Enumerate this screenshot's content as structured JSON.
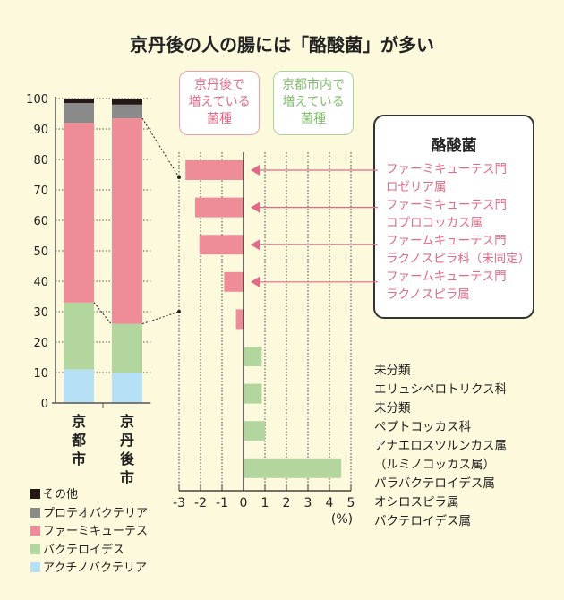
{
  "chart_data": [
    {
      "type": "bar",
      "stacked": true,
      "categories": [
        "京都市",
        "京丹後市"
      ],
      "ylim": [
        0,
        100
      ],
      "yticks": [
        "0",
        "10",
        "20",
        "30",
        "40",
        "50",
        "60",
        "70",
        "80",
        "90",
        "100"
      ],
      "series": [
        {
          "name": "アクチノバクテリア",
          "color": "#b5e0f5",
          "values": [
            11,
            10
          ]
        },
        {
          "name": "バクテロイデス",
          "color": "#b3d69e",
          "values": [
            22,
            16
          ]
        },
        {
          "name": "ファーミキューテス",
          "color": "#ee8c98",
          "values": [
            59,
            67.5
          ]
        },
        {
          "name": "プロテオバクテリア",
          "color": "#8a8a8a",
          "values": [
            6.5,
            4.5
          ]
        },
        {
          "name": "その他",
          "color": "#231815",
          "values": [
            1.5,
            2
          ]
        }
      ],
      "legend_order": [
        "その他",
        "プロテオバクテリア",
        "ファーミキューテス",
        "バクテロイデス",
        "アクチノバクテリア"
      ]
    },
    {
      "type": "bar",
      "orientation": "horizontal",
      "xlim": [
        -3,
        5
      ],
      "xticks": [
        "-3",
        "-2",
        "-1",
        "0",
        "1",
        "2",
        "3",
        "4",
        "5"
      ],
      "xunit": "(%)",
      "values": [
        -2.7,
        -2.25,
        -2.05,
        -0.9,
        -0.35,
        0.85,
        0.85,
        1.0,
        4.55
      ],
      "colors": {
        "negative": "#ee8c98",
        "positive": "#b3d69e"
      }
    }
  ],
  "title": "京丹後の人の腸には「酪酸菌」が多い",
  "box_kyotango": "京丹後で増えている菌種",
  "box_kyotango_lines": [
    "京丹後で",
    "増えている",
    "菌種"
  ],
  "box_kyoto_lines": [
    "京都市内で",
    "増えている",
    "菌種"
  ],
  "butyrate_box": {
    "heading": "酪酸菌",
    "items": [
      [
        "ファーミキューテス門",
        "ロゼリア属"
      ],
      [
        "ファーミキューテス門",
        "コプロコッカス属"
      ],
      [
        "ファームキューテス門",
        "ラクノスピラ科（未同定）"
      ],
      [
        "ファームキューテス門",
        "ラクノスピラ属"
      ]
    ]
  },
  "green_labels": [
    "未分類",
    "エリュシペロトリクス科",
    "未分類",
    "ペプトコッカス科",
    "アナエロスツルンカス属",
    "（ルミノコッカス属）",
    "パラバクテロイデス属",
    "オシロスピラ属",
    "バクテロイデス属"
  ],
  "colors": {
    "pink": "#e36a86",
    "green": "#7fbf6a",
    "bg": "#fdf9dc"
  }
}
